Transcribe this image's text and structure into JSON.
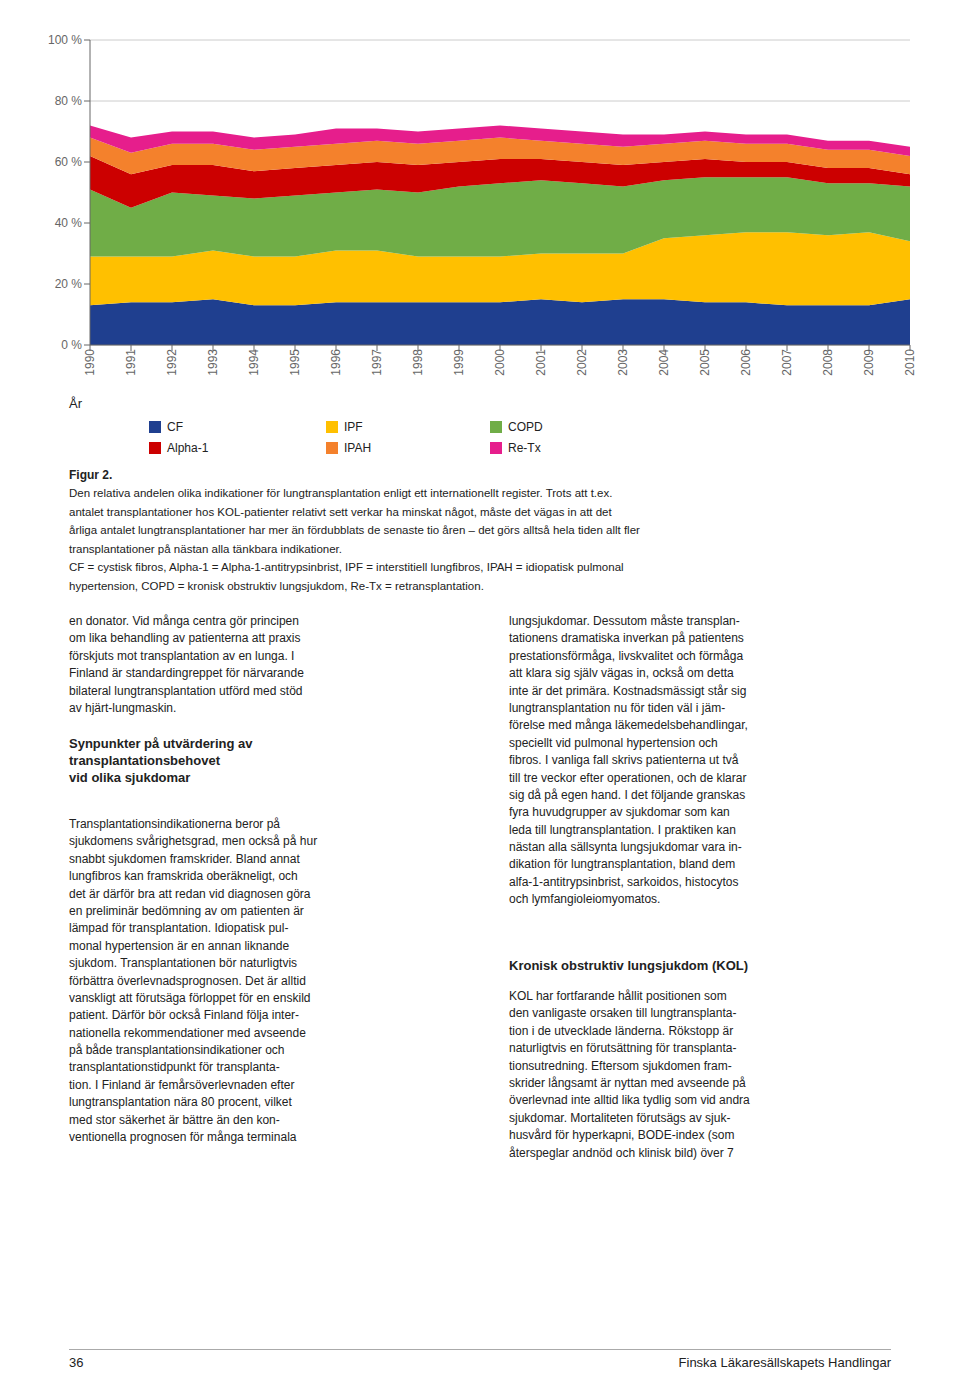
{
  "chart_data": {
    "type": "area",
    "stacked": true,
    "grid": true,
    "legend": "bottom",
    "xlabel": "År",
    "x": [
      1990,
      1991,
      1992,
      1993,
      1994,
      1995,
      1996,
      1997,
      1998,
      1999,
      2000,
      2001,
      2002,
      2003,
      2004,
      2005,
      2006,
      2007,
      2008,
      2009,
      2010
    ],
    "xlim": [
      1990,
      2010
    ],
    "xticks": [
      1990,
      1991,
      1992,
      1993,
      1994,
      1995,
      1996,
      1997,
      1998,
      1999,
      2000,
      2001,
      2002,
      2003,
      2004,
      2005,
      2006,
      2007,
      2008,
      2009,
      2010
    ],
    "ylim": [
      0,
      100
    ],
    "yticks": [
      {
        "value": 0,
        "label": "0 %"
      },
      {
        "value": 20,
        "label": "20 %"
      },
      {
        "value": 40,
        "label": "40 %"
      },
      {
        "value": 60,
        "label": "60 %"
      },
      {
        "value": 80,
        "label": "80 %"
      },
      {
        "value": 100,
        "label": "100 %"
      }
    ],
    "series": [
      {
        "name": "CF",
        "color": "#1f3f8f",
        "values": [
          13,
          14,
          14,
          15,
          13,
          13,
          14,
          14,
          14,
          14,
          14,
          15,
          14,
          15,
          15,
          14,
          14,
          13,
          13,
          13,
          15
        ]
      },
      {
        "name": "IPF",
        "color": "#ffc000",
        "values": [
          16,
          15,
          15,
          16,
          16,
          16,
          17,
          17,
          15,
          15,
          15,
          15,
          16,
          15,
          20,
          22,
          23,
          24,
          23,
          24,
          19
        ]
      },
      {
        "name": "COPD",
        "color": "#70ad47",
        "values": [
          22,
          16,
          21,
          18,
          19,
          20,
          19,
          20,
          21,
          23,
          24,
          24,
          23,
          22,
          19,
          19,
          18,
          18,
          17,
          16,
          18
        ]
      },
      {
        "name": "Alpha-1",
        "color": "#cc0000",
        "values": [
          11,
          11,
          9,
          10,
          9,
          9,
          9,
          9,
          9,
          8,
          8,
          7,
          7,
          7,
          6,
          6,
          5,
          5,
          5,
          5,
          4
        ]
      },
      {
        "name": "IPAH",
        "color": "#f4812c",
        "values": [
          6,
          7,
          7,
          7,
          7,
          7,
          7,
          7,
          7,
          7,
          7,
          6,
          6,
          6,
          6,
          6,
          6,
          6,
          6,
          6,
          6
        ]
      },
      {
        "name": "Re-Tx",
        "color": "#e61e8c",
        "values": [
          4,
          5,
          4,
          4,
          4,
          4,
          5,
          4,
          4,
          4,
          4,
          4,
          4,
          4,
          3,
          3,
          3,
          3,
          3,
          3,
          3
        ]
      }
    ],
    "annotations": [
      "Figur 2.",
      "Den relativa andelen olika indikationer för lungtransplantation enligt ett internationellt register. Trots att t.ex.",
      "antalet transplantationer hos KOL-patienter relativt sett verkar ha minskat något, måste det vägas in att det",
      "årliga antalet lungtransplantationer har mer än fördubblats de senaste tio åren – det görs alltså hela tiden allt fler",
      "transplantationer på nästan alla tänkbara indikationer.",
      "CF = cystisk fibros, Alpha-1 = Alpha-1-antitrypsinbrist, IPF = interstitiell lungfibros, IPAH = idiopatisk pulmonal",
      "hypertension, COPD = kronisk obstruktiv lungsjukdom, Re-Tx = retransplantation.",
      "en donator. Vid många centra gör principen\nom lika behandling av patienterna att praxis\nförskjuts mot transplantation av en lunga. I\nFinland är standardingreppet för närvarande\nbilateral lungtransplantation utförd med stöd\nav hjärt-lungmaskin.",
      "Synpunkter på utvärdering av\ntransplantationsbehovet\nvid olika sjukdomar",
      "Transplantationsindikationerna beror på\nsjukdomens svårighetsgrad, men också på hur\nsnabbt sjukdomen framskrider. Bland annat\nlungfibros kan framskrida oberäkneligt, och\ndet är därför bra att redan vid diagnosen göra\nen preliminär bedömning av om patienten är\nlämpad för transplantation. Idiopatisk pul-\nmonal hypertension är en annan liknande\nsjukdom. Transplantationen bör naturligtvis\nförbättra överlevnadsprognosen. Det är alltid\nvanskligt att förutsäga förloppet för en enskild\npatient. Därför bör också Finland följa inter-\nnationella rekommendationer med avseende\npå både transplantationsindikationer och\ntransplantationstidpunkt för transplanta-\ntion. I Finland är femårsöverlevnaden efter\nlungtransplantation nära 80 procent, vilket\nmed stor säkerhet är bättre än den kon-\nventionella prognosen för många terminala",
      "lungsjukdomar. Dessutom måste transplan-\ntationens dramatiska inverkan på patientens\nprestationsförmåga, livskvalitet och förmåga\natt klara sig själv vägas in, också om detta\ninte är det primära. Kostnadsmässigt står sig\nlungtransplantation nu för tiden väl i jäm-\nförelse med många läkemedelsbehandlingar,\nspeciellt vid pulmonal hypertension och\nfibros. I vanliga fall skrivs patienterna ut två\ntill tre veckor efter operationen, och de klarar\nsig då på egen hand. I det följande granskas\nfyra huvudgrupper av sjukdomar som kan\nleda till lungtransplantation. I praktiken kan\nnästan alla sällsynta lungsjukdomar vara in-\ndikation för lungtransplantation, bland dem\nalfa-1-antitrypsinbrist, sarkoidos, histocytos\noch lymfangioleiomyomatos.",
      "Kronisk obstruktiv lungsjukdom (KOL)",
      "KOL har fortfarande hållit positionen som\nden vanligaste orsaken till lungtransplanta-\ntion i de utvecklade länderna. Rökstopp är\nnaturligtvis en förutsättning för transplanta-\ntionsutredning. Eftersom sjukdomen fram-\nskrider långsamt är nyttan med avseende på\növerlevnad inte alltid lika tydlig som vid andra\nsjukdomar. Mortaliteten förutsägs av sjuk-\nhusvård för hyperkapni, BODE-index (som\nåterspeglar andnöd och klinisk bild) över 7",
      "36",
      "Finska Läkaresällskapets Handlingar"
    ]
  }
}
